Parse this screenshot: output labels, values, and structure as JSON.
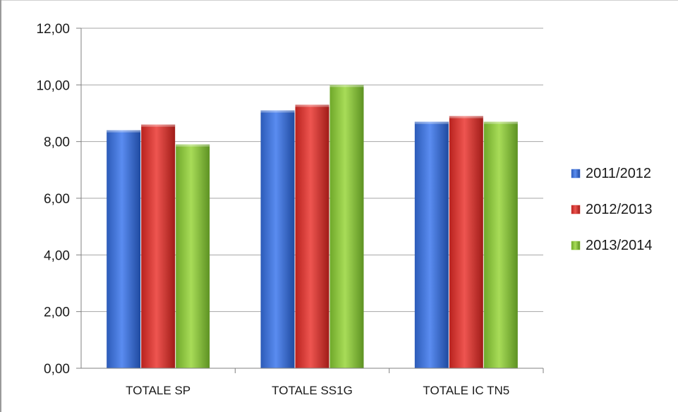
{
  "chart_data": {
    "type": "bar",
    "categories": [
      "TOTALE SP",
      "TOTALE SS1G",
      "TOTALE IC TN5"
    ],
    "series": [
      {
        "name": "2011/2012",
        "values": [
          8.4,
          9.1,
          8.7
        ],
        "color": "#3b6fd6"
      },
      {
        "name": "2012/2013",
        "values": [
          8.6,
          9.3,
          8.9
        ],
        "color": "#d63a34"
      },
      {
        "name": "2013/2014",
        "values": [
          7.9,
          10.0,
          8.7
        ],
        "color": "#8ec63a"
      }
    ],
    "y_ticks": [
      "0,00",
      "2,00",
      "4,00",
      "6,00",
      "8,00",
      "10,00",
      "12,00"
    ],
    "ylim": [
      0,
      12
    ],
    "grid": true,
    "legend_position": "right"
  }
}
